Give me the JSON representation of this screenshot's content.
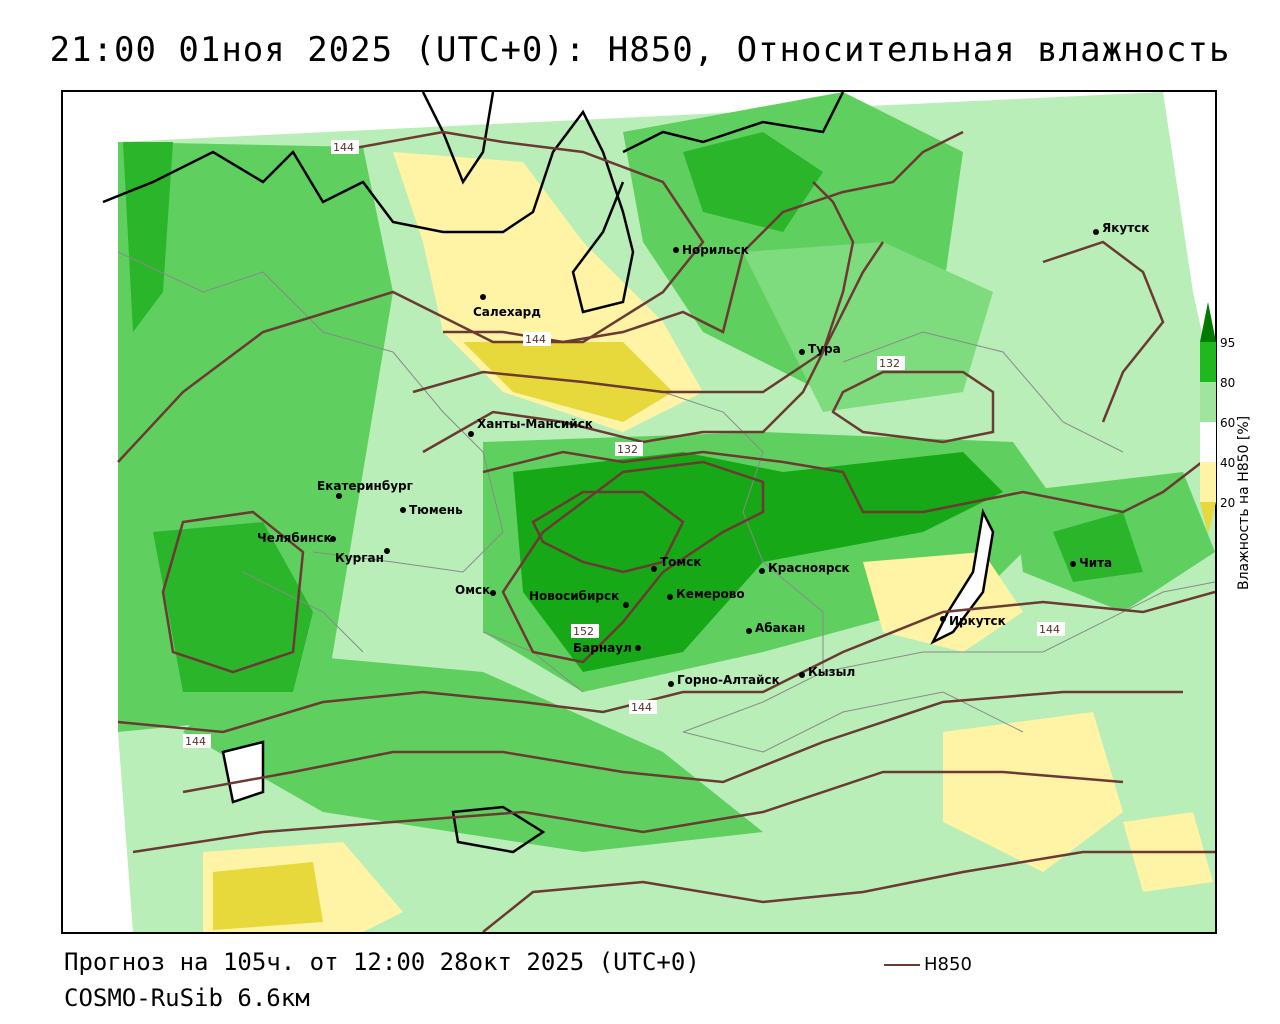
{
  "header": {
    "title": "21:00 01ноя 2025 (UTC+0): H850, Относительная влажность"
  },
  "footer": {
    "forecast": "Прогноз на 105ч. от 12:00 28окт 2025 (UTC+0)",
    "model": "COSMO-RuSib 6.6км",
    "line_legend": "H850"
  },
  "legend": {
    "title": "Влажность на H850 [%]",
    "ticks": [
      "95",
      "80",
      "60",
      "40",
      "20"
    ],
    "colors": {
      "c95": "#007a00",
      "c80": "#1fb81f",
      "c60": "#9fe59f",
      "c50": "#ffffff",
      "c40": "#fff3a6",
      "c20": "#e7d83c"
    }
  },
  "contours": {
    "color": "#6b3a32",
    "labels": [
      "144",
      "144",
      "132",
      "132",
      "152",
      "144",
      "144",
      "144"
    ]
  },
  "cities": [
    {
      "name": "Норильск"
    },
    {
      "name": "Якутск"
    },
    {
      "name": "Салехард"
    },
    {
      "name": "Тура"
    },
    {
      "name": "Ханты-Мансийск"
    },
    {
      "name": "Екатеринбург"
    },
    {
      "name": "Тюмень"
    },
    {
      "name": "Челябинск"
    },
    {
      "name": "Курган"
    },
    {
      "name": "Омск"
    },
    {
      "name": "Новосибирск"
    },
    {
      "name": "Томск"
    },
    {
      "name": "Кемерово"
    },
    {
      "name": "Красноярск"
    },
    {
      "name": "Абакан"
    },
    {
      "name": "Барнаул"
    },
    {
      "name": "Горно-Алтайск"
    },
    {
      "name": "Кызыл"
    },
    {
      "name": "Иркутск"
    },
    {
      "name": "Чита"
    }
  ]
}
